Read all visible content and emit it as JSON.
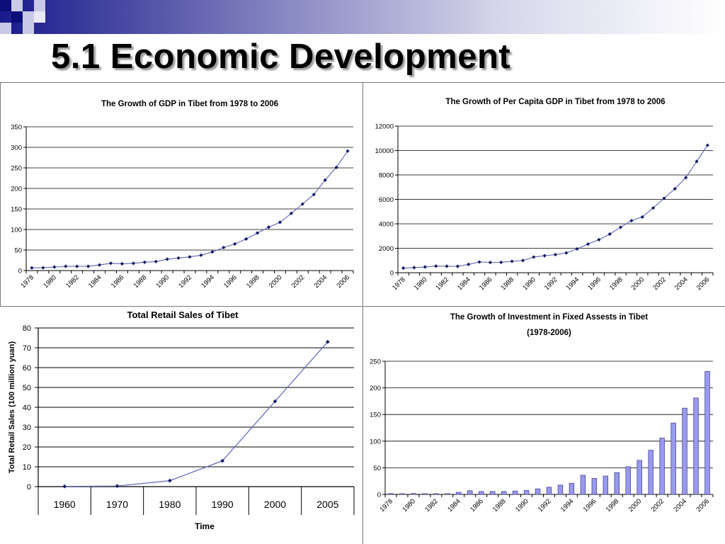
{
  "page": {
    "title": "5.1 Economic Development"
  },
  "chart_data": [
    {
      "id": "gdp",
      "type": "line",
      "title": "The Growth of GDP in Tibet from 1978 to 2006",
      "xlabel": "",
      "ylabel": "",
      "x": [
        1978,
        1979,
        1980,
        1981,
        1982,
        1983,
        1984,
        1985,
        1986,
        1987,
        1988,
        1989,
        1990,
        1991,
        1992,
        1993,
        1994,
        1995,
        1996,
        1997,
        1998,
        1999,
        2000,
        2001,
        2002,
        2003,
        2004,
        2005,
        2006
      ],
      "x_tick_labels": [
        "1978",
        "1980",
        "1982",
        "1984",
        "1986",
        "1988",
        "1990",
        "1992",
        "1994",
        "1996",
        "1998",
        "2000",
        "2002",
        "2004",
        "2006"
      ],
      "values": [
        6.7,
        7.0,
        8.7,
        10.4,
        10.2,
        10.3,
        13.7,
        17.8,
        16.6,
        17.7,
        20.3,
        21.9,
        27.7,
        30.5,
        33.3,
        37.4,
        45.5,
        56.1,
        64.8,
        76.9,
        91.5,
        105.6,
        117.5,
        139.2,
        162.0,
        185.1,
        220.3,
        251.2,
        291.0
      ],
      "ylim": [
        0,
        350
      ],
      "y_ticks": [
        0,
        50,
        100,
        150,
        200,
        250,
        300,
        350
      ],
      "grid": true,
      "color": "#5b64b8"
    },
    {
      "id": "per_capita",
      "type": "line",
      "title": "The Growth of Per Capita GDP in Tibet from 1978 to 2006",
      "xlabel": "",
      "ylabel": "",
      "x": [
        1978,
        1979,
        1980,
        1981,
        1982,
        1983,
        1984,
        1985,
        1986,
        1987,
        1988,
        1989,
        1990,
        1991,
        1992,
        1993,
        1994,
        1995,
        1996,
        1997,
        1998,
        1999,
        2000,
        2001,
        2002,
        2003,
        2004,
        2005,
        2006
      ],
      "x_tick_labels": [
        "1978",
        "1980",
        "1982",
        "1984",
        "1986",
        "1988",
        "1990",
        "1992",
        "1994",
        "1996",
        "1998",
        "2000",
        "2002",
        "2004",
        "2006"
      ],
      "values": [
        375,
        420,
        470,
        540,
        530,
        520,
        680,
        880,
        840,
        850,
        930,
        1000,
        1280,
        1390,
        1480,
        1620,
        1950,
        2340,
        2700,
        3160,
        3720,
        4260,
        4560,
        5300,
        6090,
        6870,
        7780,
        9110,
        10430
      ],
      "ylim": [
        0,
        12000
      ],
      "y_ticks": [
        0,
        2000,
        4000,
        6000,
        8000,
        10000,
        12000
      ],
      "grid": true,
      "color": "#5b64b8"
    },
    {
      "id": "retail",
      "type": "line",
      "title": "Total Retail Sales of Tibet",
      "xlabel": "Time",
      "ylabel": "Total Retail Sales (100 million yuan)",
      "categories": [
        "1960",
        "1970",
        "1980",
        "1990",
        "2000",
        "2005"
      ],
      "values": [
        0.1,
        0.3,
        3.0,
        13.0,
        43.0,
        73.0
      ],
      "ylim": [
        0,
        80
      ],
      "y_ticks": [
        0,
        10,
        20,
        30,
        40,
        50,
        60,
        70,
        80
      ],
      "grid": true,
      "color": "#5b64b8"
    },
    {
      "id": "investment",
      "type": "bar",
      "title": "The Growth of Investment in Fixed Assests in Tibet",
      "subtitle": "(1978-2006)",
      "xlabel": "",
      "ylabel": "",
      "x": [
        1978,
        1979,
        1980,
        1981,
        1982,
        1983,
        1984,
        1985,
        1986,
        1987,
        1988,
        1989,
        1990,
        1991,
        1992,
        1993,
        1994,
        1995,
        1996,
        1997,
        1998,
        1999,
        2000,
        2001,
        2002,
        2003,
        2004,
        2005,
        2006
      ],
      "x_tick_labels": [
        "1978",
        "1980",
        "1982",
        "1984",
        "1986",
        "1988",
        "1990",
        "1992",
        "1994",
        "1996",
        "1998",
        "2000",
        "2002",
        "2004",
        "2006"
      ],
      "values": [
        1.6,
        1.4,
        1.8,
        1.5,
        1.5,
        1.5,
        4.0,
        7.0,
        5.5,
        5.5,
        5.5,
        6.5,
        7.5,
        10.5,
        13.5,
        17.5,
        21.0,
        36.0,
        30.0,
        34.5,
        41.0,
        52.0,
        64.0,
        83.0,
        106.0,
        134.0,
        162.0,
        181.0,
        231.0
      ],
      "ylim": [
        0,
        250
      ],
      "y_ticks": [
        0,
        50,
        100,
        150,
        200,
        250
      ],
      "grid": true,
      "color": "#9999ee"
    }
  ]
}
